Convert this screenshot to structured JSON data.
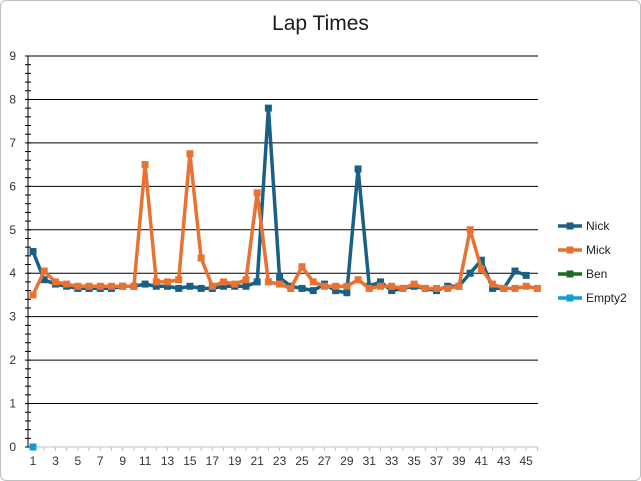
{
  "chart_data": {
    "type": "line",
    "title": "Lap Times",
    "xlabel": "",
    "ylabel": "",
    "ylim": [
      0,
      9
    ],
    "y_ticks": [
      "0",
      "1",
      "2",
      "3",
      "4",
      "5",
      "6",
      "7",
      "8",
      "9"
    ],
    "x_ticks": [
      "1",
      "3",
      "5",
      "7",
      "9",
      "11",
      "13",
      "15",
      "17",
      "19",
      "21",
      "23",
      "25",
      "27",
      "29",
      "31",
      "33",
      "35",
      "37",
      "39",
      "41",
      "43",
      "45"
    ],
    "x_range": [
      1,
      46
    ],
    "grid": "horizontal",
    "legend_position": "right",
    "series": [
      {
        "name": "Nick",
        "color": "#1a6084",
        "marker": "square",
        "x": [
          1,
          2,
          3,
          4,
          5,
          6,
          7,
          8,
          9,
          10,
          11,
          12,
          13,
          14,
          15,
          16,
          17,
          18,
          19,
          20,
          21,
          22,
          23,
          24,
          25,
          26,
          27,
          28,
          29,
          30,
          31,
          32,
          33,
          34,
          35,
          36,
          37,
          38,
          39,
          40,
          41,
          42,
          43,
          44,
          45
        ],
        "values": [
          4.5,
          3.85,
          3.75,
          3.7,
          3.65,
          3.65,
          3.65,
          3.65,
          3.7,
          3.7,
          3.75,
          3.7,
          3.7,
          3.65,
          3.7,
          3.65,
          3.65,
          3.7,
          3.7,
          3.7,
          3.8,
          7.8,
          3.9,
          3.7,
          3.65,
          3.6,
          3.75,
          3.6,
          3.55,
          6.4,
          3.7,
          3.8,
          3.6,
          3.65,
          3.7,
          3.65,
          3.6,
          3.7,
          3.7,
          4.0,
          4.3,
          3.65,
          3.65,
          4.05,
          3.95
        ]
      },
      {
        "name": "Mick",
        "color": "#e97132",
        "marker": "square",
        "x": [
          1,
          2,
          3,
          4,
          5,
          6,
          7,
          8,
          9,
          10,
          11,
          12,
          13,
          14,
          15,
          16,
          17,
          18,
          19,
          20,
          21,
          22,
          23,
          24,
          25,
          26,
          27,
          28,
          29,
          30,
          31,
          32,
          33,
          34,
          35,
          36,
          37,
          38,
          39,
          40,
          41,
          42,
          43,
          44,
          45,
          46
        ],
        "values": [
          3.5,
          4.05,
          3.8,
          3.75,
          3.7,
          3.7,
          3.7,
          3.7,
          3.7,
          3.7,
          6.5,
          3.8,
          3.8,
          3.85,
          6.75,
          4.35,
          3.7,
          3.8,
          3.75,
          3.85,
          5.85,
          3.8,
          3.75,
          3.65,
          4.15,
          3.8,
          3.7,
          3.7,
          3.7,
          3.85,
          3.65,
          3.7,
          3.7,
          3.65,
          3.75,
          3.65,
          3.65,
          3.65,
          3.7,
          5.0,
          4.1,
          3.75,
          3.65,
          3.65,
          3.7,
          3.65
        ]
      },
      {
        "name": "Ben",
        "color": "#196b24",
        "marker": "square",
        "x": [],
        "values": []
      },
      {
        "name": "Empty2",
        "color": "#0f9ed5",
        "marker": "square",
        "x": [
          1
        ],
        "values": [
          0
        ]
      }
    ]
  }
}
